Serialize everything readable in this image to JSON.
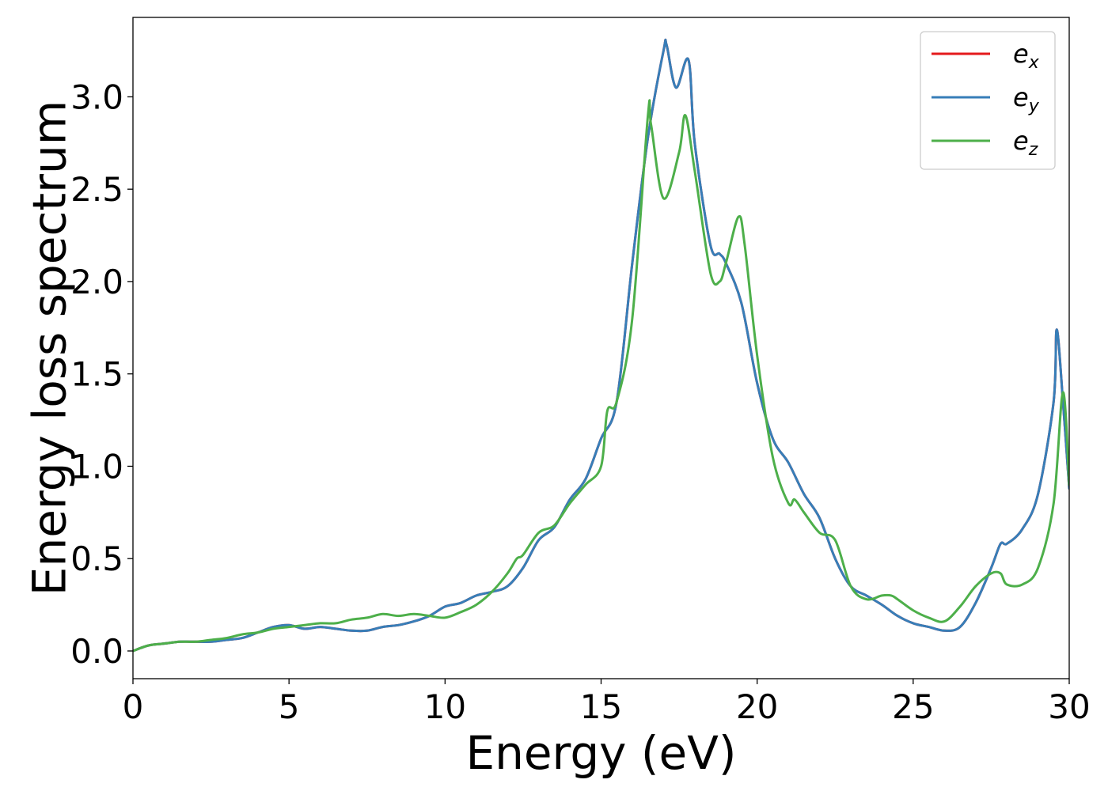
{
  "chart_data": {
    "type": "line",
    "title": "",
    "xlabel": "Energy (eV)",
    "ylabel": "Energy loss spectrum",
    "xlim": [
      0,
      30
    ],
    "ylim": [
      -0.15,
      3.43
    ],
    "xticks": [
      0,
      5,
      10,
      15,
      20,
      25,
      30
    ],
    "xtick_labels": [
      "0",
      "5",
      "10",
      "15",
      "20",
      "25",
      "30"
    ],
    "yticks": [
      0.0,
      0.5,
      1.0,
      1.5,
      2.0,
      2.5,
      3.0
    ],
    "ytick_labels": [
      "0.0",
      "0.5",
      "1.0",
      "1.5",
      "2.0",
      "2.5",
      "3.0"
    ],
    "grid": false,
    "legend_position": "top-right",
    "series": [
      {
        "name": "e_x",
        "legend_base": "e",
        "legend_sub": "x",
        "color": "#e41a1c",
        "x": [
          0,
          0.5,
          1,
          1.5,
          2,
          2.5,
          3,
          3.5,
          4,
          4.5,
          5,
          5.5,
          6,
          6.5,
          7,
          7.5,
          8,
          8.5,
          9,
          9.5,
          10,
          10.5,
          11,
          11.5,
          12,
          12.5,
          13,
          13.5,
          14,
          14.5,
          15,
          15.5,
          16,
          16.5,
          17,
          17.1,
          17.4,
          17.8,
          18,
          18.5,
          18.8,
          19,
          19.5,
          20,
          20.5,
          21,
          21.5,
          22,
          22.5,
          23,
          23.5,
          24,
          24.5,
          25,
          25.5,
          26,
          26.5,
          27,
          27.5,
          27.8,
          28,
          28.5,
          29,
          29.5,
          29.6,
          29.8,
          30
        ],
        "values": [
          0.0,
          0.03,
          0.04,
          0.05,
          0.05,
          0.05,
          0.06,
          0.07,
          0.1,
          0.13,
          0.14,
          0.12,
          0.13,
          0.12,
          0.11,
          0.11,
          0.13,
          0.14,
          0.16,
          0.19,
          0.24,
          0.26,
          0.3,
          0.32,
          0.35,
          0.45,
          0.6,
          0.67,
          0.82,
          0.93,
          1.15,
          1.35,
          2.1,
          2.78,
          3.25,
          3.28,
          3.05,
          3.2,
          2.75,
          2.2,
          2.15,
          2.1,
          1.88,
          1.45,
          1.15,
          1.02,
          0.85,
          0.72,
          0.5,
          0.35,
          0.3,
          0.25,
          0.19,
          0.15,
          0.13,
          0.11,
          0.13,
          0.26,
          0.45,
          0.58,
          0.58,
          0.66,
          0.85,
          1.35,
          1.74,
          1.35,
          0.88
        ]
      },
      {
        "name": "e_y",
        "legend_base": "e",
        "legend_sub": "y",
        "color": "#377eb8",
        "x": [
          0,
          0.5,
          1,
          1.5,
          2,
          2.5,
          3,
          3.5,
          4,
          4.5,
          5,
          5.5,
          6,
          6.5,
          7,
          7.5,
          8,
          8.5,
          9,
          9.5,
          10,
          10.5,
          11,
          11.5,
          12,
          12.5,
          13,
          13.5,
          14,
          14.5,
          15,
          15.5,
          16,
          16.5,
          17,
          17.1,
          17.4,
          17.8,
          18,
          18.5,
          18.8,
          19,
          19.5,
          20,
          20.5,
          21,
          21.5,
          22,
          22.5,
          23,
          23.5,
          24,
          24.5,
          25,
          25.5,
          26,
          26.5,
          27,
          27.5,
          27.8,
          28,
          28.5,
          29,
          29.5,
          29.6,
          29.8,
          30
        ],
        "values": [
          0.0,
          0.03,
          0.04,
          0.05,
          0.05,
          0.05,
          0.06,
          0.07,
          0.1,
          0.13,
          0.14,
          0.12,
          0.13,
          0.12,
          0.11,
          0.11,
          0.13,
          0.14,
          0.16,
          0.19,
          0.24,
          0.26,
          0.3,
          0.32,
          0.35,
          0.45,
          0.6,
          0.67,
          0.82,
          0.93,
          1.15,
          1.35,
          2.1,
          2.78,
          3.25,
          3.28,
          3.05,
          3.2,
          2.75,
          2.2,
          2.15,
          2.1,
          1.88,
          1.45,
          1.15,
          1.02,
          0.85,
          0.72,
          0.5,
          0.35,
          0.3,
          0.25,
          0.19,
          0.15,
          0.13,
          0.11,
          0.13,
          0.26,
          0.45,
          0.58,
          0.58,
          0.66,
          0.85,
          1.35,
          1.74,
          1.35,
          0.88
        ]
      },
      {
        "name": "e_z",
        "legend_base": "e",
        "legend_sub": "z",
        "color": "#4daf4a",
        "x": [
          0,
          0.5,
          1,
          1.5,
          2,
          2.5,
          3,
          3.5,
          4,
          4.5,
          5,
          5.5,
          6,
          6.5,
          7,
          7.5,
          8,
          8.5,
          9,
          9.5,
          10,
          10.5,
          11,
          11.5,
          12,
          12.3,
          12.5,
          13,
          13.5,
          14,
          14.5,
          15,
          15.2,
          15.5,
          16,
          16.5,
          16.6,
          17,
          17.5,
          17.7,
          18,
          18.5,
          18.8,
          19,
          19.4,
          19.6,
          20,
          20.5,
          21,
          21.2,
          21.5,
          22,
          22.5,
          23,
          23.5,
          24,
          24.3,
          24.5,
          25,
          25.5,
          26,
          26.5,
          27,
          27.5,
          27.8,
          28,
          28.5,
          29,
          29.5,
          29.8,
          30
        ],
        "values": [
          0.0,
          0.03,
          0.04,
          0.05,
          0.05,
          0.06,
          0.07,
          0.09,
          0.1,
          0.12,
          0.13,
          0.14,
          0.15,
          0.15,
          0.17,
          0.18,
          0.2,
          0.19,
          0.2,
          0.19,
          0.18,
          0.21,
          0.25,
          0.32,
          0.42,
          0.5,
          0.52,
          0.64,
          0.68,
          0.8,
          0.9,
          1.0,
          1.3,
          1.35,
          1.8,
          2.9,
          2.85,
          2.45,
          2.7,
          2.9,
          2.6,
          2.05,
          2.0,
          2.1,
          2.35,
          2.2,
          1.6,
          1.05,
          0.8,
          0.82,
          0.75,
          0.64,
          0.6,
          0.35,
          0.28,
          0.3,
          0.3,
          0.28,
          0.22,
          0.18,
          0.16,
          0.24,
          0.35,
          0.42,
          0.42,
          0.36,
          0.36,
          0.45,
          0.8,
          1.4,
          0.9
        ]
      }
    ]
  }
}
